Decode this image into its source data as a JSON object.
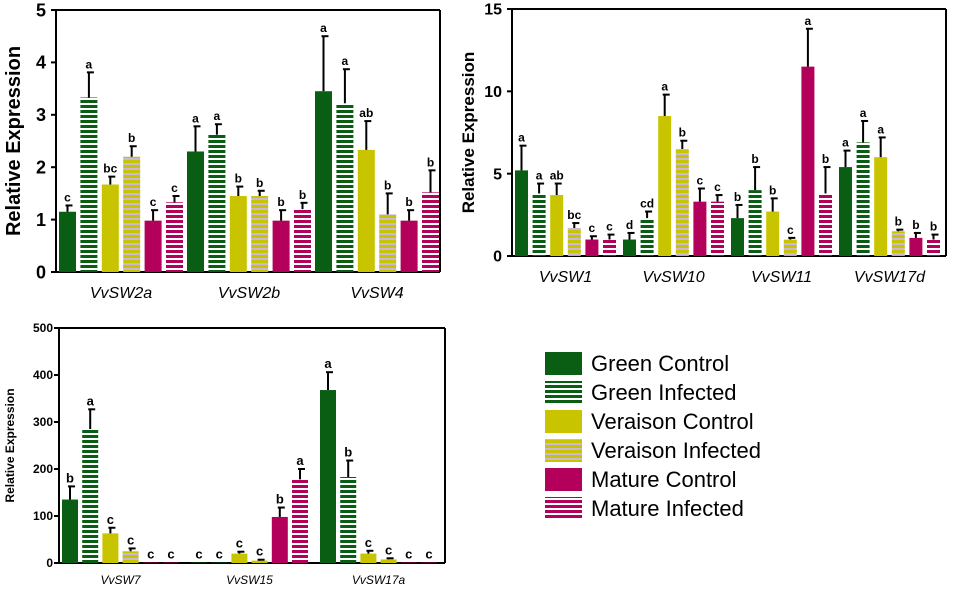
{
  "chart_data": [
    {
      "type": "bar",
      "title": "",
      "ylabel": "Relative Expression",
      "xlabel": "",
      "ylim": [
        0,
        5
      ],
      "yticks": [
        0,
        1,
        2,
        3,
        4,
        5
      ],
      "categories": [
        "VvSW2a",
        "VvSW2b",
        "VvSW4"
      ],
      "series": [
        {
          "name": "Green Control",
          "values": [
            1.15,
            2.3,
            3.45
          ],
          "errors": [
            0.12,
            0.48,
            1.05
          ],
          "letters": [
            "c",
            "a",
            "a"
          ]
        },
        {
          "name": "Green Infected",
          "values": [
            3.33,
            2.62,
            3.22
          ],
          "errors": [
            0.48,
            0.2,
            0.65
          ],
          "letters": [
            "a",
            "a",
            "a"
          ]
        },
        {
          "name": "Veraison Control",
          "values": [
            1.67,
            1.45,
            2.33
          ],
          "errors": [
            0.15,
            0.18,
            0.55
          ],
          "letters": [
            "bc",
            "b",
            "ab"
          ]
        },
        {
          "name": "Veraison Infected",
          "values": [
            2.2,
            1.45,
            1.1
          ],
          "errors": [
            0.2,
            0.1,
            0.4
          ],
          "letters": [
            "b",
            "b",
            "b"
          ]
        },
        {
          "name": "Mature Control",
          "values": [
            0.98,
            0.98,
            0.98
          ],
          "errors": [
            0.2,
            0.2,
            0.2
          ],
          "letters": [
            "c",
            "b",
            "b"
          ]
        },
        {
          "name": "Mature Infected",
          "values": [
            1.33,
            1.2,
            1.52
          ],
          "errors": [
            0.12,
            0.12,
            0.42
          ],
          "letters": [
            "c",
            "b",
            "b"
          ]
        }
      ]
    },
    {
      "type": "bar",
      "title": "",
      "ylabel": "Relative Expression",
      "xlabel": "",
      "ylim": [
        0,
        15
      ],
      "yticks": [
        0,
        5,
        10,
        15
      ],
      "categories": [
        "VvSW1",
        "VvSW10",
        "VvSW11",
        "VvSW17d"
      ],
      "series": [
        {
          "name": "Green Control",
          "values": [
            5.2,
            1.0,
            2.3,
            5.4
          ],
          "errors": [
            1.5,
            0.4,
            0.8,
            1.0
          ],
          "letters": [
            "a",
            "d",
            "b",
            "a"
          ]
        },
        {
          "name": "Green Infected",
          "values": [
            3.8,
            2.3,
            4.0,
            6.9
          ],
          "errors": [
            0.6,
            0.4,
            1.4,
            1.3
          ],
          "letters": [
            "a",
            "cd",
            "b",
            "a"
          ]
        },
        {
          "name": "Veraison Control",
          "values": [
            3.7,
            8.5,
            2.7,
            6.0
          ],
          "errors": [
            0.7,
            1.3,
            0.8,
            1.2
          ],
          "letters": [
            "ab",
            "a",
            "b",
            "a"
          ]
        },
        {
          "name": "Veraison Infected",
          "values": [
            1.7,
            6.5,
            1.0,
            1.5
          ],
          "errors": [
            0.3,
            0.5,
            0.1,
            0.1
          ],
          "letters": [
            "bc",
            "b",
            "c",
            "b"
          ]
        },
        {
          "name": "Mature Control",
          "values": [
            1.0,
            3.3,
            11.5,
            1.1
          ],
          "errors": [
            0.2,
            0.8,
            2.3,
            0.3
          ],
          "letters": [
            "c",
            "c",
            "a",
            "b"
          ]
        },
        {
          "name": "Mature Infected",
          "values": [
            1.0,
            3.3,
            3.8,
            1.0
          ],
          "errors": [
            0.3,
            0.4,
            1.6,
            0.3
          ],
          "letters": [
            "c",
            "c",
            "b",
            "b"
          ]
        }
      ]
    },
    {
      "type": "bar",
      "title": "",
      "ylabel": "Relative Expression",
      "xlabel": "",
      "ylim": [
        0,
        500
      ],
      "yticks": [
        0,
        100,
        200,
        300,
        400,
        500
      ],
      "categories": [
        "VvSW7",
        "VvSW15",
        "VvSW17a"
      ],
      "series": [
        {
          "name": "Green Control",
          "values": [
            135,
            1,
            368
          ],
          "errors": [
            28,
            0,
            38
          ],
          "letters": [
            "b",
            "c",
            "a"
          ]
        },
        {
          "name": "Green Infected",
          "values": [
            285,
            1,
            183
          ],
          "errors": [
            42,
            0,
            35
          ],
          "letters": [
            "a",
            "c",
            "b"
          ]
        },
        {
          "name": "Veraison Control",
          "values": [
            63,
            20,
            20
          ],
          "errors": [
            12,
            4,
            6
          ],
          "letters": [
            "c",
            "c",
            "c"
          ]
        },
        {
          "name": "Veraison Infected",
          "values": [
            25,
            5,
            8
          ],
          "errors": [
            6,
            2,
            2
          ],
          "letters": [
            "c",
            "c",
            "c"
          ]
        },
        {
          "name": "Mature Control",
          "values": [
            1,
            98,
            1
          ],
          "errors": [
            0,
            20,
            0
          ],
          "letters": [
            "c",
            "b",
            "c"
          ]
        },
        {
          "name": "Mature Infected",
          "values": [
            1,
            178,
            1
          ],
          "errors": [
            0,
            22,
            0
          ],
          "letters": [
            "c",
            "a",
            "c"
          ]
        }
      ]
    }
  ],
  "legend": {
    "items": [
      {
        "label": "Green Control",
        "color": "#0a5e14",
        "pattern": "solid"
      },
      {
        "label": "Green Infected",
        "color": "#0a5e14",
        "pattern": "stripes"
      },
      {
        "label": "Veraison Control",
        "color": "#c9c400",
        "pattern": "solid"
      },
      {
        "label": "Veraison Infected",
        "color": "#c9c400",
        "pattern": "stripes"
      },
      {
        "label": "Mature Control",
        "color": "#b3005a",
        "pattern": "solid"
      },
      {
        "label": "Mature Infected",
        "color": "#b3005a",
        "pattern": "stripes"
      }
    ]
  }
}
